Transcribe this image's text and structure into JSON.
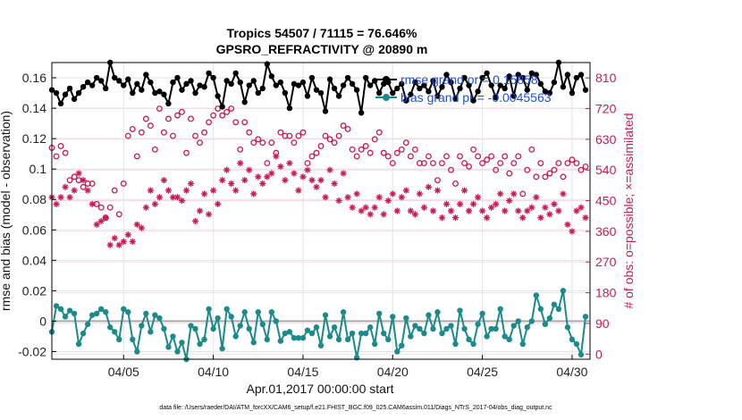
{
  "chart_data": {
    "type": "line",
    "title": "Tropics 54507 / 71115 = 76.646%",
    "subtitle": "GPSRO_REFRACTIVITY @ 20890 m",
    "xlabel": "Apr.01,2017 00:00:00 start",
    "ylabel": "rmse and bias (model - observation)",
    "ylabel_right": "# of obs: o=possible; ×=assimilated",
    "footer": "data file: /Users/raeder/DAI/ATM_forcXX/CAM6_setup/f.e21.FHIST_BGC.f09_025.CAM6assim.011/Diags_NTrS_2017-04/obs_diag_output.nc",
    "x_range": [
      1,
      31
    ],
    "ylim": [
      -0.025,
      0.17
    ],
    "ylim_right": [
      -15,
      855
    ],
    "xticks": [
      5,
      10,
      15,
      20,
      25,
      30
    ],
    "xtick_labels": [
      "04/05",
      "04/10",
      "04/15",
      "04/20",
      "04/25",
      "04/30"
    ],
    "yticks": [
      -0.02,
      0,
      0.02,
      0.04,
      0.06,
      0.08,
      0.1,
      0.12,
      0.14,
      0.16
    ],
    "ytick_labels": [
      "-0.02",
      "0",
      "0.02",
      "0.04",
      "0.06",
      "0.08",
      "0.1",
      "0.12",
      "0.14",
      "0.16"
    ],
    "yticks_right": [
      0,
      90,
      180,
      270,
      360,
      450,
      540,
      630,
      720,
      810
    ],
    "ytick_labels_right": [
      "0",
      "90",
      "180",
      "270",
      "360",
      "450",
      "540",
      "630",
      "720",
      "810"
    ],
    "grid": true,
    "legend_position": "top-right",
    "x": [
      1.0,
      1.25,
      1.5,
      1.75,
      2.0,
      2.25,
      2.5,
      2.75,
      3.0,
      3.25,
      3.5,
      3.75,
      4.0,
      4.25,
      4.5,
      4.75,
      5.0,
      5.25,
      5.5,
      5.75,
      6.0,
      6.25,
      6.5,
      6.75,
      7.0,
      7.25,
      7.5,
      7.75,
      8.0,
      8.25,
      8.5,
      8.75,
      9.0,
      9.25,
      9.5,
      9.75,
      10.0,
      10.25,
      10.5,
      10.75,
      11.0,
      11.25,
      11.5,
      11.75,
      12.0,
      12.25,
      12.5,
      12.75,
      13.0,
      13.25,
      13.5,
      13.75,
      14.0,
      14.25,
      14.5,
      14.75,
      15.0,
      15.25,
      15.5,
      15.75,
      16.0,
      16.25,
      16.5,
      16.75,
      17.0,
      17.25,
      17.5,
      17.75,
      18.0,
      18.25,
      18.5,
      18.75,
      19.0,
      19.25,
      19.5,
      19.75,
      20.0,
      20.25,
      20.5,
      20.75,
      21.0,
      21.25,
      21.5,
      21.75,
      22.0,
      22.25,
      22.5,
      22.75,
      23.0,
      23.25,
      23.5,
      23.75,
      24.0,
      24.25,
      24.5,
      24.75,
      25.0,
      25.25,
      25.5,
      25.75,
      26.0,
      26.25,
      26.5,
      26.75,
      27.0,
      27.25,
      27.5,
      27.75,
      28.0,
      28.25,
      28.5,
      28.75,
      29.0,
      29.25,
      29.5,
      29.75,
      30.0,
      30.25,
      30.5,
      30.75
    ],
    "series": [
      {
        "name": "rmse",
        "legend_label": "rmse grand or = 0.15858",
        "color": "#000000",
        "marker": "filled-circle",
        "axis": "left",
        "values": [
          0.152,
          0.15,
          0.143,
          0.149,
          0.153,
          0.146,
          0.15,
          0.154,
          0.157,
          0.155,
          0.16,
          0.158,
          0.153,
          0.17,
          0.16,
          0.158,
          0.155,
          0.159,
          0.15,
          0.156,
          0.152,
          0.162,
          0.157,
          0.15,
          0.151,
          0.149,
          0.143,
          0.157,
          0.16,
          0.152,
          0.156,
          0.158,
          0.15,
          0.155,
          0.154,
          0.163,
          0.16,
          0.148,
          0.141,
          0.158,
          0.156,
          0.163,
          0.157,
          0.144,
          0.155,
          0.158,
          0.15,
          0.153,
          0.169,
          0.161,
          0.155,
          0.157,
          0.15,
          0.14,
          0.156,
          0.155,
          0.157,
          0.148,
          0.16,
          0.152,
          0.15,
          0.138,
          0.159,
          0.153,
          0.148,
          0.155,
          0.16,
          0.156,
          0.152,
          0.137,
          0.16,
          0.155,
          0.158,
          0.15,
          0.156,
          0.157,
          0.15,
          0.153,
          0.156,
          0.145,
          0.149,
          0.157,
          0.153,
          0.155,
          0.151,
          0.158,
          0.148,
          0.154,
          0.162,
          0.157,
          0.146,
          0.153,
          0.16,
          0.155,
          0.145,
          0.151,
          0.16,
          0.163,
          0.155,
          0.147,
          0.155,
          0.153,
          0.161,
          0.148,
          0.162,
          0.16,
          0.152,
          0.163,
          0.162,
          0.156,
          0.151,
          0.15,
          0.157,
          0.17,
          0.154,
          0.162,
          0.15,
          0.16,
          0.162,
          0.152
        ]
      },
      {
        "name": "bias",
        "legend_label": "bias grand pr = -0.0045563",
        "color": "#1a8a8a",
        "marker": "filled-circle",
        "axis": "left",
        "values": [
          -0.007,
          0.01,
          0.008,
          0.003,
          0.007,
          0.005,
          -0.015,
          -0.008,
          -0.002,
          0.004,
          0.005,
          0.008,
          0.006,
          -0.004,
          -0.007,
          -0.012,
          0.008,
          0.006,
          -0.012,
          -0.02,
          -0.003,
          0.005,
          -0.007,
          0.004,
          0.002,
          -0.005,
          -0.017,
          -0.01,
          -0.02,
          -0.014,
          -0.025,
          -0.003,
          -0.005,
          -0.015,
          -0.012,
          0.008,
          -0.005,
          0.002,
          -0.018,
          0.008,
          0.003,
          -0.01,
          -0.003,
          0.006,
          -0.005,
          -0.014,
          0.006,
          -0.002,
          -0.012,
          0.006,
          0.0,
          -0.013,
          -0.008,
          -0.007,
          -0.011,
          -0.011,
          -0.011,
          -0.006,
          -0.008,
          -0.004,
          -0.016,
          0.004,
          -0.01,
          -0.004,
          -0.012,
          0.006,
          -0.012,
          -0.008,
          -0.024,
          -0.008,
          -0.008,
          -0.004,
          -0.015,
          0.005,
          -0.008,
          -0.012,
          0.003,
          -0.02,
          -0.016,
          0.002,
          -0.01,
          -0.003,
          -0.005,
          -0.008,
          0.004,
          -0.005,
          0.006,
          -0.008,
          -0.005,
          -0.003,
          -0.015,
          0.007,
          -0.005,
          -0.012,
          -0.015,
          -0.002,
          0.005,
          -0.01,
          -0.005,
          -0.005,
          0.008,
          -0.01,
          -0.012,
          -0.003,
          0.0,
          -0.015,
          -0.004,
          0.0,
          0.017,
          0.008,
          -0.002,
          0.002,
          0.011,
          0.008,
          0.02,
          -0.004,
          -0.012,
          -0.015,
          -0.022,
          0.003
        ]
      },
      {
        "name": "obs_possible",
        "color": "#c71a55",
        "marker": "open-circle",
        "axis": "right",
        "values": [
          605,
          580,
          610,
          590,
          510,
          520,
          510,
          490,
          500,
          500,
          440,
          430,
          400,
          430,
          480,
          410,
          500,
          640,
          660,
          580,
          650,
          690,
          670,
          600,
          720,
          650,
          690,
          640,
          700,
          710,
          590,
          690,
          640,
          620,
          650,
          680,
          700,
          720,
          700,
          710,
          720,
          680,
          600,
          680,
          650,
          620,
          630,
          620,
          560,
          620,
          590,
          650,
          640,
          640,
          620,
          640,
          650,
          560,
          580,
          590,
          610,
          640,
          630,
          620,
          640,
          670,
          660,
          600,
          580,
          600,
          610,
          590,
          630,
          650,
          590,
          580,
          560,
          590,
          600,
          620,
          580,
          600,
          560,
          560,
          580,
          560,
          510,
          560,
          580,
          540,
          500,
          580,
          560,
          550,
          600,
          580,
          560,
          570,
          580,
          540,
          560,
          580,
          530,
          560,
          580,
          470,
          540,
          600,
          520,
          560,
          520,
          530,
          540,
          560,
          520,
          560,
          570,
          560,
          540,
          550
        ]
      },
      {
        "name": "obs_assimilated",
        "color": "#c71a55",
        "marker": "asterisk",
        "axis": "right",
        "values": [
          460,
          440,
          460,
          490,
          460,
          480,
          530,
          510,
          480,
          440,
          380,
          390,
          400,
          320,
          340,
          320,
          330,
          350,
          330,
          380,
          370,
          430,
          480,
          440,
          460,
          510,
          480,
          460,
          460,
          450,
          480,
          500,
          390,
          420,
          470,
          410,
          480,
          440,
          510,
          540,
          500,
          480,
          560,
          510,
          540,
          470,
          520,
          500,
          520,
          530,
          580,
          550,
          510,
          560,
          530,
          480,
          520,
          540,
          510,
          490,
          510,
          460,
          540,
          500,
          450,
          530,
          460,
          430,
          470,
          420,
          430,
          410,
          430,
          460,
          410,
          450,
          470,
          420,
          460,
          480,
          420,
          410,
          470,
          430,
          490,
          420,
          480,
          400,
          440,
          420,
          400,
          440,
          480,
          420,
          440,
          460,
          420,
          400,
          430,
          440,
          470,
          420,
          450,
          470,
          420,
          400,
          420,
          430,
          460,
          400,
          430,
          410,
          440,
          420,
          470,
          380,
          360,
          420,
          430,
          400
        ]
      }
    ]
  }
}
